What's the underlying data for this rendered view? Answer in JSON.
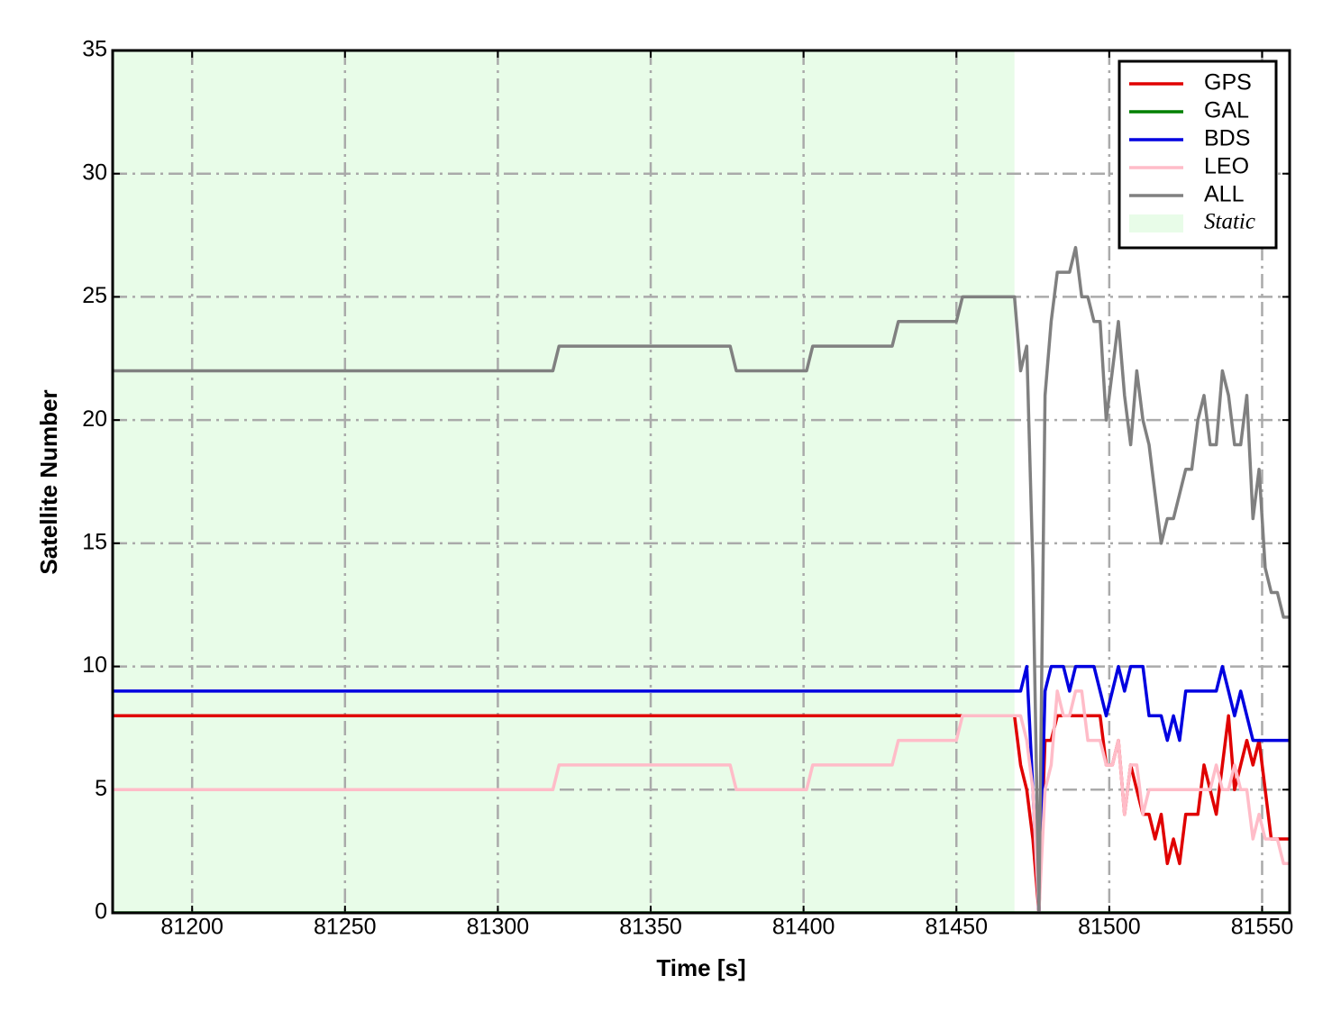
{
  "chart_data": {
    "type": "line",
    "xlabel": "Time [s]",
    "ylabel": "Satellite Number",
    "xlim": [
      81174,
      81559
    ],
    "ylim": [
      0,
      35
    ],
    "xticks": [
      81200,
      81250,
      81300,
      81350,
      81400,
      81450,
      81500,
      81550
    ],
    "yticks": [
      0,
      5,
      10,
      15,
      20,
      25,
      30,
      35
    ],
    "grid": true,
    "legend": "upper right",
    "static_region": {
      "label": "Static",
      "x0": 81174,
      "x1": 81469,
      "color": "#e8fce8"
    },
    "x": [
      81174,
      81318,
      81320,
      81376,
      81378,
      81401,
      81403,
      81429,
      81431,
      81450,
      81452,
      81469,
      81471,
      81473,
      81475,
      81477,
      81479,
      81481,
      81483,
      81485,
      81487,
      81489,
      81491,
      81493,
      81495,
      81497,
      81499,
      81501,
      81503,
      81505,
      81507,
      81509,
      81511,
      81513,
      81515,
      81517,
      81519,
      81521,
      81523,
      81525,
      81527,
      81529,
      81531,
      81533,
      81535,
      81537,
      81539,
      81541,
      81543,
      81545,
      81547,
      81549,
      81551,
      81553,
      81555,
      81557,
      81559
    ],
    "series": [
      {
        "name": "GPS",
        "color": "#e00000",
        "values": [
          8,
          8,
          8,
          8,
          8,
          8,
          8,
          8,
          8,
          8,
          8,
          8,
          6,
          5,
          3,
          0,
          7,
          7,
          8,
          8,
          8,
          8,
          8,
          8,
          8,
          8,
          6,
          6,
          7,
          4,
          6,
          5,
          4,
          4,
          3,
          4,
          2,
          3,
          2,
          4,
          4,
          4,
          6,
          5,
          4,
          6,
          8,
          5,
          6,
          7,
          6,
          7,
          5,
          3,
          3,
          3,
          3
        ]
      },
      {
        "name": "GAL",
        "color": "#008000",
        "values": [
          0,
          0,
          0,
          0,
          0,
          0,
          0,
          0,
          0,
          0,
          0,
          0,
          0,
          0,
          0,
          0,
          0,
          0,
          0,
          0,
          0,
          0,
          0,
          0,
          0,
          0,
          0,
          0,
          0,
          0,
          0,
          0,
          0,
          0,
          0,
          0,
          0,
          0,
          0,
          0,
          0,
          0,
          0,
          0,
          0,
          0,
          0,
          0,
          0,
          0,
          0,
          0,
          0,
          0,
          0,
          0,
          0
        ]
      },
      {
        "name": "BDS",
        "color": "#0000e0",
        "values": [
          9,
          9,
          9,
          9,
          9,
          9,
          9,
          9,
          9,
          9,
          9,
          9,
          9,
          10,
          5,
          0,
          9,
          10,
          10,
          10,
          9,
          10,
          10,
          10,
          10,
          9,
          8,
          9,
          10,
          9,
          10,
          10,
          10,
          8,
          8,
          8,
          7,
          8,
          7,
          9,
          9,
          9,
          9,
          9,
          9,
          10,
          9,
          8,
          9,
          8,
          7,
          7,
          7,
          7,
          7,
          7,
          7
        ]
      },
      {
        "name": "LEO",
        "color": "#ffbcc8",
        "values": [
          5,
          5,
          6,
          6,
          5,
          5,
          6,
          6,
          7,
          7,
          8,
          8,
          8,
          7,
          5,
          0,
          5,
          6,
          9,
          8,
          8,
          9,
          9,
          7,
          7,
          7,
          6,
          6,
          7,
          4,
          6,
          6,
          4,
          5,
          5,
          5,
          5,
          5,
          5,
          5,
          5,
          5,
          5,
          5,
          6,
          5,
          5,
          6,
          5,
          5,
          3,
          4,
          3,
          3,
          3,
          2,
          2
        ]
      },
      {
        "name": "ALL",
        "color": "#808080",
        "values": [
          22,
          22,
          23,
          23,
          22,
          22,
          23,
          23,
          24,
          24,
          25,
          25,
          22,
          23,
          14,
          0,
          21,
          24,
          26,
          26,
          26,
          27,
          25,
          25,
          24,
          24,
          20,
          22,
          24,
          21,
          19,
          22,
          20,
          19,
          17,
          15,
          16,
          16,
          17,
          18,
          18,
          20,
          21,
          19,
          19,
          22,
          21,
          19,
          19,
          21,
          16,
          18,
          14,
          13,
          13,
          12,
          12
        ]
      }
    ]
  }
}
